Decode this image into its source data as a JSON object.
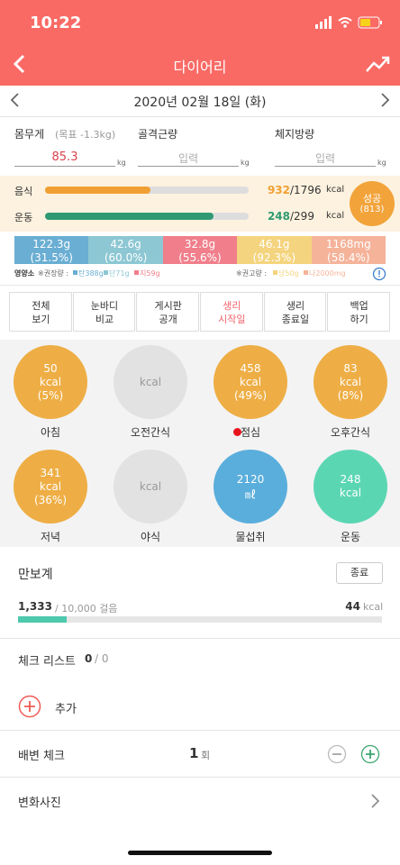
{
  "status_bar": {
    "time": "10:22"
  },
  "header": {
    "title": "다이어리"
  },
  "date": "2020년 02월 18일 (화)",
  "body_stats": [
    {
      "label": "몸무게",
      "note": "(목표 -1.3kg)",
      "value": 85.3,
      "unit": "kg"
    },
    {
      "label": "골격근량",
      "value": "입력",
      "unit": "kg"
    },
    {
      "label": "체지방량",
      "value": "입력",
      "unit": "kg"
    }
  ],
  "calories": [
    {
      "label": "음식",
      "value": 932,
      "goal": {
        "value": 1796,
        "label": "/1796"
      },
      "unit": "kcal",
      "color": "#f0a032"
    },
    {
      "label": "운동",
      "value": 248,
      "goal": {
        "value": 299,
        "label": "/299"
      },
      "unit": "kcal",
      "color": "#2f9a72"
    }
  ],
  "badge": {
    "label": "성공",
    "detail": "(813)"
  },
  "nutrients": [
    {
      "amount": "122.3g",
      "percent": "(31.5%)",
      "color": "#6aaed3"
    },
    {
      "amount": "42.6g",
      "percent": "(60.0%)",
      "color": "#8cc7d3"
    },
    {
      "amount": "32.8g",
      "percent": "(55.6%)",
      "color": "#f07f8b"
    },
    {
      "amount": "46.1g",
      "percent": "(92.3%)",
      "color": "#f4d47e"
    },
    {
      "amount": "1168mg",
      "percent": "(58.4%)",
      "color": "#f5b39a"
    }
  ],
  "nutrient_legend": {
    "title": "영양소",
    "recommended_label": "※권장량 :",
    "recommended": [
      {
        "label": "탄388g",
        "color": "#6aaed3"
      },
      {
        "label": "단71g",
        "color": "#8cc7d3"
      },
      {
        "label": "지59g",
        "color": "#f07f8b"
      }
    ],
    "advised_label": "※권고량 :",
    "advised": [
      {
        "label": "당50g",
        "color": "#f4d47e"
      },
      {
        "label": "나2000mg",
        "color": "#f5b39a"
      }
    ]
  },
  "menu": [
    {
      "lines": [
        "전체",
        "보기"
      ]
    },
    {
      "lines": [
        "눈바디",
        "비교"
      ]
    },
    {
      "lines": [
        "게시판",
        "공개"
      ]
    },
    {
      "lines": [
        "생리",
        "시작일"
      ],
      "highlight": true
    },
    {
      "lines": [
        "생리",
        "종료일"
      ]
    },
    {
      "lines": [
        "백업",
        "하기"
      ]
    }
  ],
  "meals": [
    {
      "label": "아침",
      "lines": [
        "50",
        "kcal",
        "(5%)"
      ],
      "color": "#eeae45"
    },
    {
      "label": "오전간식",
      "lines": [
        "kcal"
      ],
      "color": "#e2e2e2"
    },
    {
      "label": "점심",
      "lines": [
        "458",
        "kcal",
        "(49%)"
      ],
      "color": "#eeae45",
      "marker": true
    },
    {
      "label": "오후간식",
      "lines": [
        "83",
        "kcal",
        "(8%)"
      ],
      "color": "#eeae45"
    },
    {
      "label": "저녁",
      "lines": [
        "341",
        "kcal",
        "(36%)"
      ],
      "color": "#eeae45"
    },
    {
      "label": "야식",
      "lines": [
        "kcal"
      ],
      "color": "#e2e2e2"
    },
    {
      "label": "물섭취",
      "lines": [
        "2120",
        "㎖"
      ],
      "color": "#5aaedc"
    },
    {
      "label": "운동",
      "lines": [
        "248",
        "kcal"
      ],
      "color": "#5bd6b3"
    }
  ],
  "pedometer": {
    "title": "만보계",
    "button": "종료",
    "steps": {
      "value": 1333,
      "label": "1,333"
    },
    "goal": {
      "value": 10000,
      "label": "/ 10,000 걸음"
    },
    "calories": 44,
    "unit": "kcal"
  },
  "checklist": {
    "title": "체크 리스트",
    "done": 0,
    "total": {
      "value": 0,
      "label": "/ 0"
    }
  },
  "add": "추가",
  "bowel": {
    "title": "배변 체크",
    "count": 1,
    "unit": "회"
  },
  "photos": {
    "title": "변화사진"
  }
}
